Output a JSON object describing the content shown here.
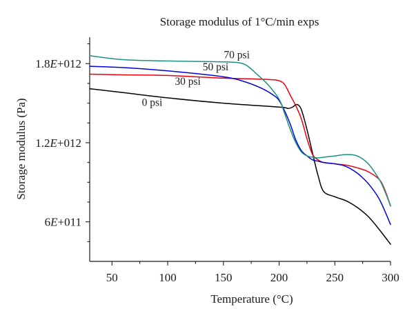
{
  "chart_data": {
    "type": "line",
    "title": "Storage modulus of 1°C/min exps",
    "xlabel": "Temperature (°C)",
    "ylabel": "Storage modulus (Pa)",
    "xlim": [
      30,
      300
    ],
    "ylim": [
      300000000000,
      2000000000000
    ],
    "x_ticks": [
      50,
      100,
      150,
      200,
      250,
      300
    ],
    "x_tick_labels": [
      "50",
      "100",
      "150",
      "200",
      "250",
      "300"
    ],
    "y_ticks": [
      600000000000,
      1200000000000,
      1800000000000
    ],
    "y_tick_labels": [
      "6E+011",
      "1.2E+012",
      "1.8E+012"
    ],
    "grid": false,
    "series": [
      {
        "name": "0 psi",
        "color": "#000000",
        "x": [
          30,
          60,
          100,
          150,
          200,
          208,
          212,
          216,
          220,
          225,
          230,
          235,
          240,
          250,
          260,
          270,
          280,
          290,
          300
        ],
        "y": [
          1610000000000,
          1580000000000,
          1540000000000,
          1500000000000,
          1470000000000,
          1460000000000,
          1470000000000,
          1490000000000,
          1450000000000,
          1300000000000,
          1120000000000,
          950000000000,
          830000000000,
          790000000000,
          760000000000,
          710000000000,
          640000000000,
          540000000000,
          430000000000
        ]
      },
      {
        "name": "30 psi",
        "color": "#e8000b",
        "x": [
          30,
          60,
          100,
          150,
          190,
          200,
          205,
          210,
          215,
          220,
          225,
          230,
          235,
          240,
          250,
          260,
          270,
          280,
          290,
          295,
          300
        ],
        "y": [
          1720000000000,
          1715000000000,
          1710000000000,
          1690000000000,
          1680000000000,
          1670000000000,
          1640000000000,
          1560000000000,
          1480000000000,
          1380000000000,
          1230000000000,
          1110000000000,
          1070000000000,
          1050000000000,
          1040000000000,
          1030000000000,
          1010000000000,
          980000000000,
          920000000000,
          840000000000,
          720000000000
        ]
      },
      {
        "name": "50 psi",
        "color": "#0000e0",
        "x": [
          30,
          60,
          100,
          150,
          170,
          185,
          195,
          200,
          205,
          210,
          215,
          220,
          225,
          230,
          235,
          240,
          250,
          260,
          270,
          280,
          290,
          300
        ],
        "y": [
          1780000000000,
          1770000000000,
          1745000000000,
          1700000000000,
          1660000000000,
          1610000000000,
          1560000000000,
          1520000000000,
          1440000000000,
          1340000000000,
          1220000000000,
          1140000000000,
          1100000000000,
          1070000000000,
          1060000000000,
          1050000000000,
          1040000000000,
          1020000000000,
          970000000000,
          890000000000,
          770000000000,
          580000000000
        ]
      },
      {
        "name": "70 psi",
        "color": "#1a9080",
        "x": [
          30,
          60,
          100,
          140,
          160,
          170,
          180,
          190,
          200,
          205,
          210,
          215,
          220,
          225,
          230,
          235,
          240,
          250,
          260,
          270,
          280,
          290,
          295,
          300
        ],
        "y": [
          1860000000000,
          1830000000000,
          1820000000000,
          1815000000000,
          1810000000000,
          1790000000000,
          1720000000000,
          1640000000000,
          1530000000000,
          1420000000000,
          1300000000000,
          1200000000000,
          1130000000000,
          1100000000000,
          1090000000000,
          1085000000000,
          1090000000000,
          1100000000000,
          1110000000000,
          1100000000000,
          1040000000000,
          920000000000,
          830000000000,
          720000000000
        ]
      }
    ],
    "annotations": [
      {
        "text": "70 psi",
        "x": 162,
        "y": 1840000000000
      },
      {
        "text": "50 psi",
        "x": 143,
        "y": 1750000000000
      },
      {
        "text": "30 psi",
        "x": 118,
        "y": 1640000000000
      },
      {
        "text": "0 psi",
        "x": 86,
        "y": 1480000000000
      }
    ]
  }
}
